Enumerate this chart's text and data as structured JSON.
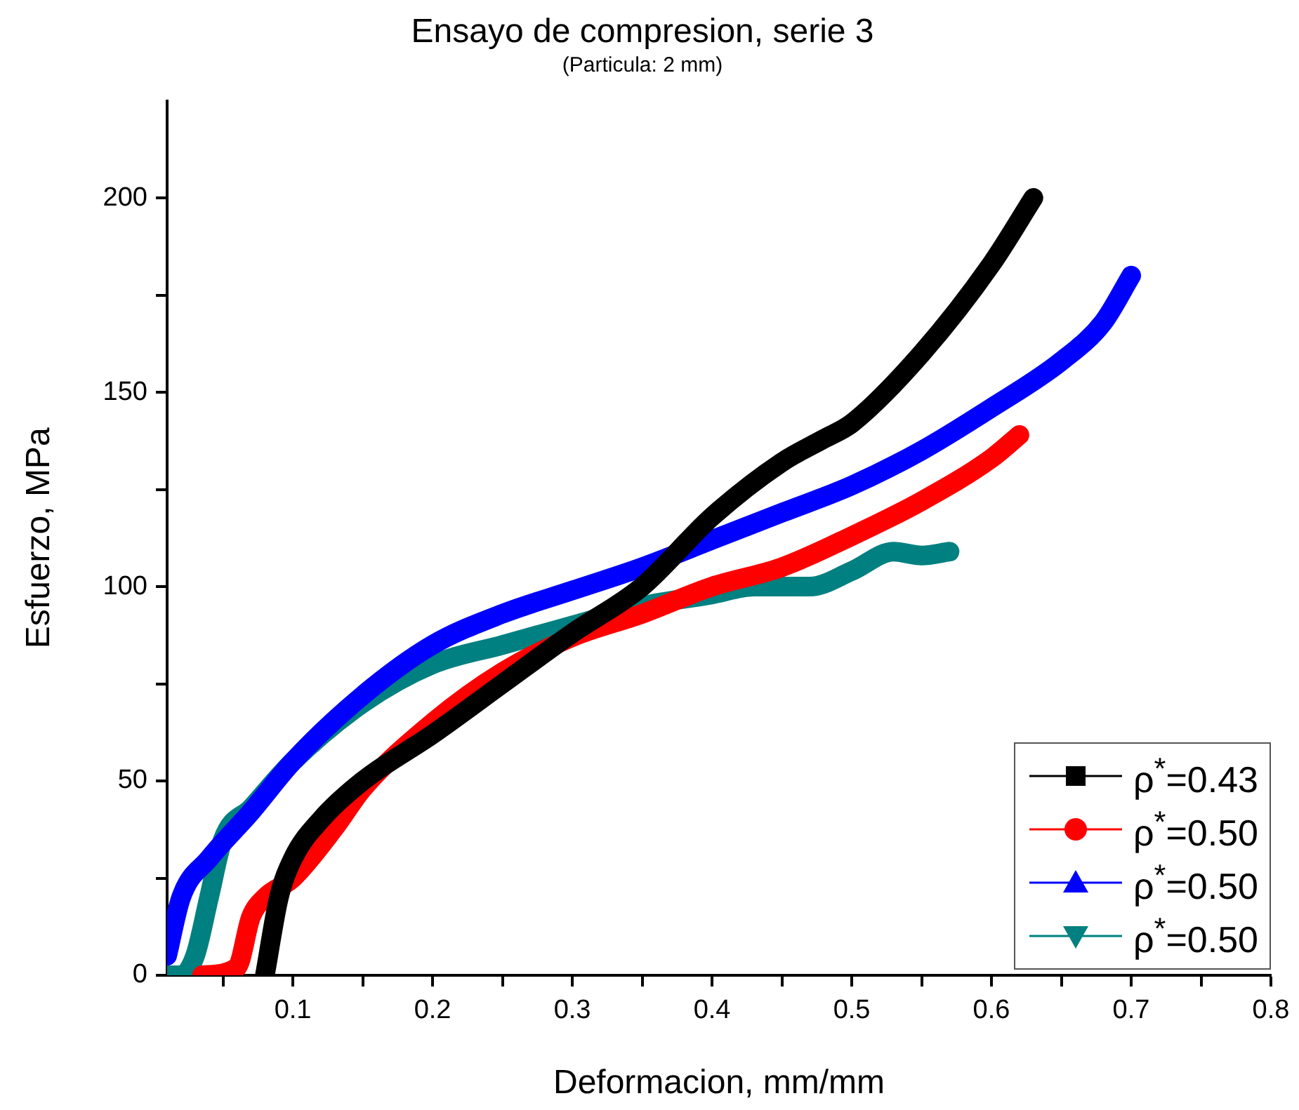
{
  "chart_data": {
    "type": "line",
    "title": "Ensayo de compresion, serie 3",
    "subtitle": "(Particula: 2 mm)",
    "xlabel": "Deformacion, mm/mm",
    "ylabel": "Esfuerzo, MPa",
    "xlim": [
      0.01,
      0.8
    ],
    "xticks": [
      {
        "value": 0.05,
        "label": null
      },
      0.1,
      {
        "value": 0.15,
        "label": null
      },
      0.2,
      {
        "value": 0.25,
        "label": null
      },
      0.3,
      {
        "value": 0.35,
        "label": null
      },
      0.4,
      {
        "value": 0.45,
        "label": null
      },
      0.5,
      {
        "value": 0.55,
        "label": null
      },
      0.6,
      {
        "value": 0.65,
        "label": null
      },
      0.7,
      {
        "value": 0.75,
        "label": null
      },
      0.8
    ],
    "ylim": [
      0,
      225
    ],
    "yticks": [
      0,
      {
        "value": 25,
        "label": null
      },
      50,
      {
        "value": 75,
        "label": null
      },
      100,
      {
        "value": 125,
        "label": null
      },
      150,
      {
        "value": 175,
        "label": null
      },
      200
    ],
    "grid": false,
    "legend": "bottom right",
    "series": [
      {
        "name": "ρ$^{*}$=0.43",
        "color": "#000000",
        "x": [
          0.08,
          0.09,
          0.1,
          0.12,
          0.15,
          0.2,
          0.25,
          0.3,
          0.35,
          0.4,
          0.45,
          0.48,
          0.5,
          0.55,
          0.6,
          0.63
        ],
        "values": [
          0,
          20,
          30,
          40,
          50,
          62,
          75,
          88,
          100,
          118,
          132,
          138,
          142,
          160,
          183,
          200
        ]
      },
      {
        "name": "ρ$^{*}$=0.50",
        "color": "#ff0000",
        "x": [
          0.035,
          0.06,
          0.07,
          0.08,
          0.1,
          0.13,
          0.15,
          0.2,
          0.25,
          0.3,
          0.35,
          0.4,
          0.45,
          0.5,
          0.55,
          0.6,
          0.62
        ],
        "values": [
          0,
          2,
          15,
          20,
          25,
          38,
          48,
          65,
          78,
          87,
          93,
          100,
          105,
          113,
          122,
          133,
          139
        ]
      },
      {
        "name": "ρ$^{*}$=0.50",
        "color": "#0000ff",
        "x": [
          0.01,
          0.02,
          0.04,
          0.07,
          0.1,
          0.15,
          0.2,
          0.25,
          0.3,
          0.35,
          0.4,
          0.45,
          0.5,
          0.55,
          0.6,
          0.65,
          0.68,
          0.7
        ],
        "values": [
          5,
          20,
          30,
          42,
          55,
          72,
          85,
          93,
          99,
          105,
          112,
          119,
          126,
          135,
          146,
          158,
          168,
          180
        ]
      },
      {
        "name": "ρ$^{*}$=0.50",
        "color": "#008080",
        "x": [
          0.01,
          0.02,
          0.03,
          0.04,
          0.05,
          0.07,
          0.1,
          0.15,
          0.2,
          0.25,
          0.3,
          0.35,
          0.4,
          0.43,
          0.47,
          0.5,
          0.53,
          0.55,
          0.57
        ],
        "values": [
          0,
          0,
          5,
          20,
          35,
          43,
          55,
          70,
          80,
          85,
          90,
          95,
          98,
          100,
          100,
          104,
          109,
          108,
          109
        ]
      }
    ]
  }
}
